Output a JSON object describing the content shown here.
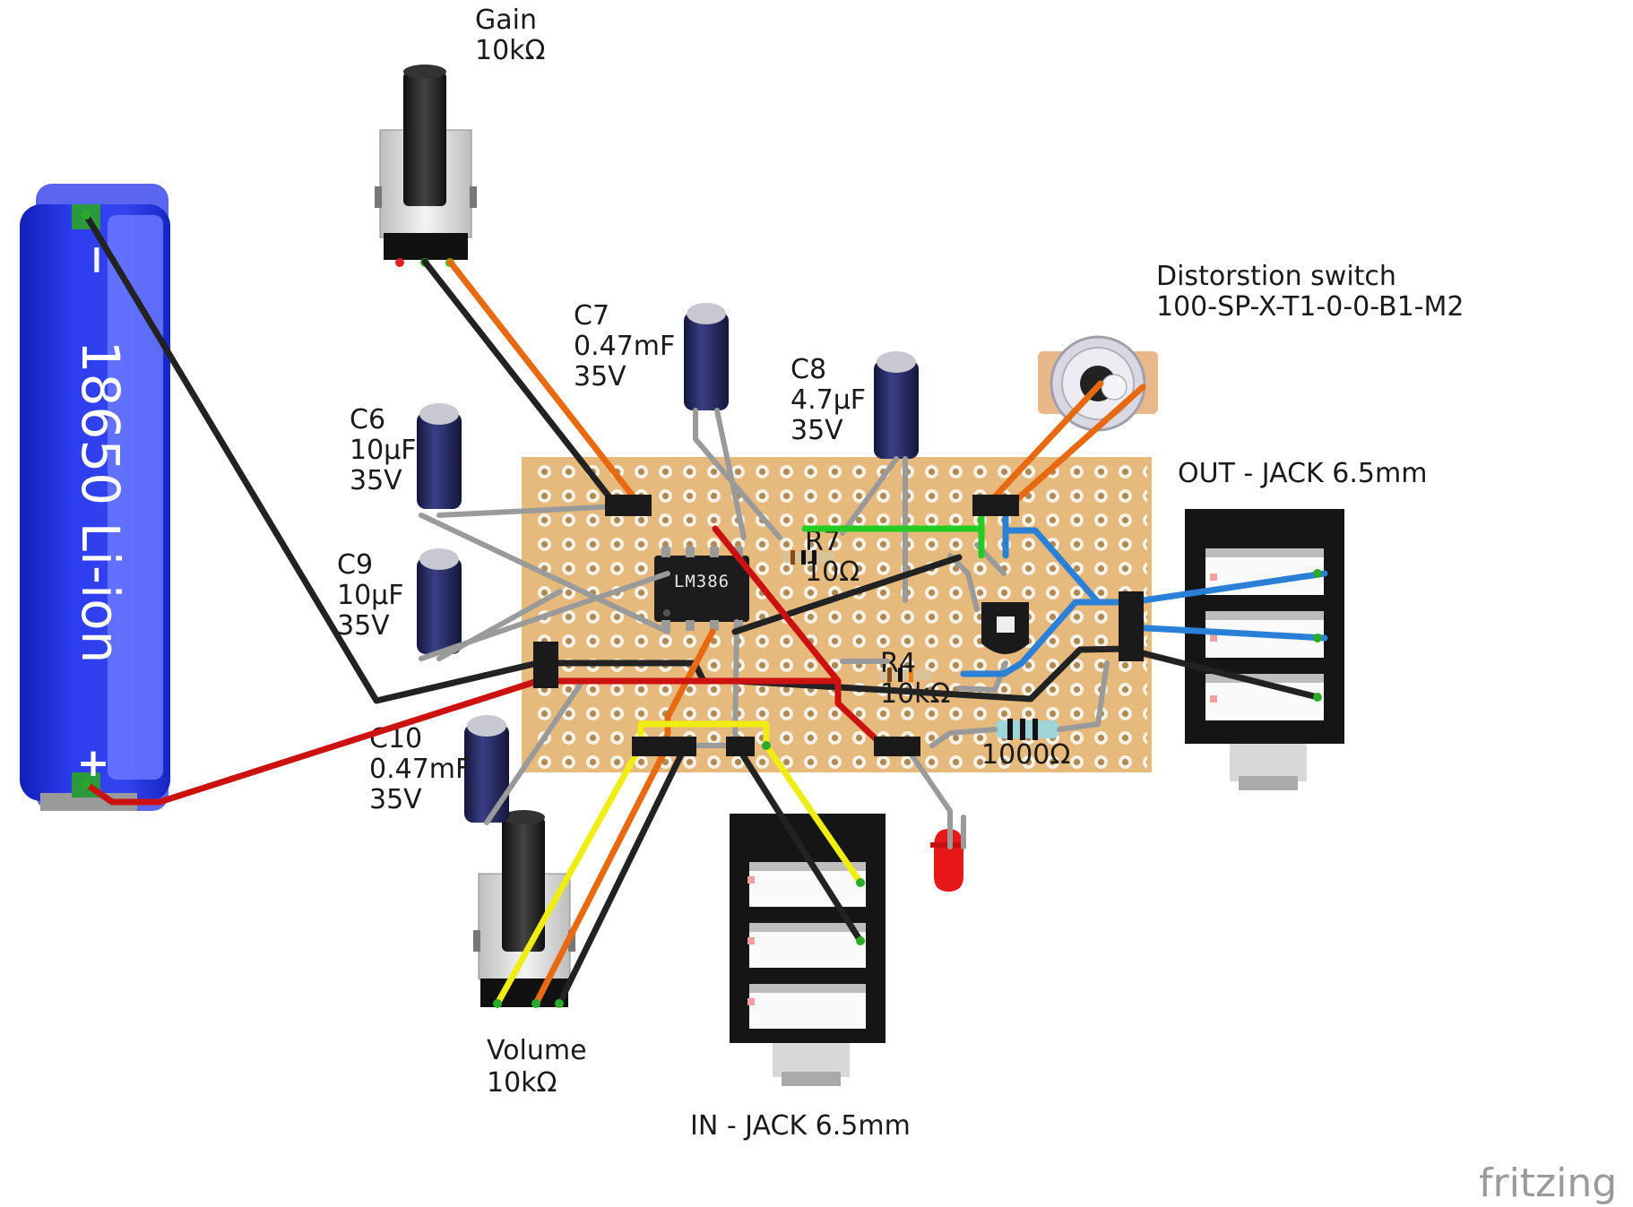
{
  "brand": "fritzing",
  "battery": {
    "label": "18650 Li-ion",
    "minus": "−",
    "plus": "+"
  },
  "ic": {
    "label": "LM386"
  },
  "gain_pot": {
    "name": "Gain",
    "value": "10kΩ"
  },
  "volume_pot": {
    "name": "Volume",
    "value": "10kΩ"
  },
  "capacitors": {
    "c6": {
      "name": "C6",
      "value": "10µF",
      "voltage": "35V"
    },
    "c7": {
      "name": "C7",
      "value": "0.47mF",
      "voltage": "35V"
    },
    "c8": {
      "name": "C8",
      "value": "4.7µF",
      "voltage": "35V"
    },
    "c9": {
      "name": "C9",
      "value": "10µF",
      "voltage": "35V"
    },
    "c10": {
      "name": "C10",
      "value": "0.47mF",
      "voltage": "35V"
    }
  },
  "resistors": {
    "r7": {
      "name": "R7",
      "value": "10Ω"
    },
    "r4": {
      "name": "R4",
      "value": "10kΩ"
    },
    "r_led": {
      "value": "1000Ω"
    }
  },
  "switch": {
    "name": "Distorstion switch",
    "part": "100-SP-X-T1-0-0-B1-M2"
  },
  "jack_out": {
    "label": "OUT - JACK 6.5mm"
  },
  "jack_in": {
    "label": "IN - JACK 6.5mm"
  },
  "colors": {
    "board": "#e6b97c",
    "battery": "#2233dd",
    "wire_red": "#cc1111",
    "wire_black": "#222222",
    "wire_orange": "#e86a10",
    "wire_yellow": "#f0ee10",
    "wire_green": "#22cc22",
    "wire_blue": "#2a7fd6",
    "wire_gray": "#9a9a9a",
    "led": "#e81818"
  }
}
